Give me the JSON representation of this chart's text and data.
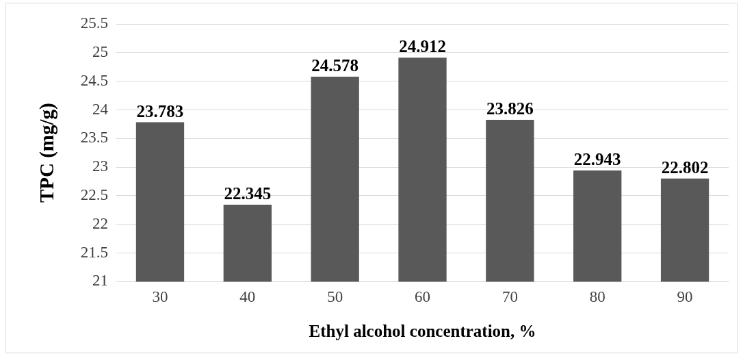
{
  "chart_data": {
    "type": "bar",
    "xlabel": "Ethyl alcohol concentration, %",
    "ylabel": "TPC (mg/g)",
    "categories": [
      "30",
      "40",
      "50",
      "60",
      "70",
      "80",
      "90"
    ],
    "values": [
      23.783,
      22.345,
      24.578,
      24.912,
      23.826,
      22.943,
      22.802
    ],
    "color": "#595959",
    "ylim": [
      21,
      25.5
    ],
    "yticks": [
      21,
      21.5,
      22,
      22.5,
      23,
      23.5,
      24,
      24.5,
      25,
      25.5
    ],
    "grid": "y",
    "data_labels": true,
    "legend": false
  }
}
